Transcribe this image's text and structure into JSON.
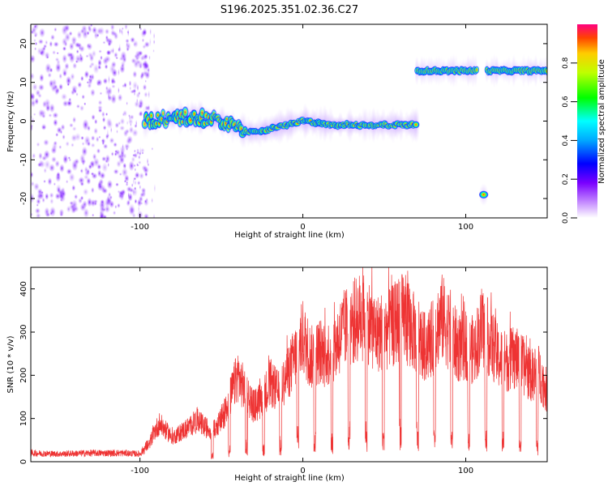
{
  "title": "S196.2025.351.02.36.C27",
  "colors": {
    "snr_line": "#ee3333",
    "axis": "#000000",
    "background": "#ffffff"
  },
  "chart_data": [
    {
      "type": "heatmap",
      "name": "spectrogram",
      "xlabel": "Height of straight line (km)",
      "ylabel": "Frequency (Hz)",
      "xlim": [
        -167,
        150
      ],
      "ylim": [
        -25,
        25
      ],
      "xticks": [
        -100,
        0,
        100
      ],
      "yticks": [
        -20,
        -10,
        0,
        10,
        20
      ],
      "colorbar": {
        "label": "Normalized spectral amplitude",
        "range": [
          0,
          1
        ],
        "ticks": [
          0.0,
          0.2,
          0.4,
          0.6,
          0.8
        ],
        "tick_labels": [
          "0.0",
          "0.2",
          "0.4",
          "0.6",
          "0.8"
        ],
        "colormap": "rainbow (white-violet-blue-cyan-green-yellow-red)"
      },
      "features": [
        {
          "description": "diffuse low-amplitude noise",
          "x_range": [
            -167,
            -95
          ],
          "freq_range": [
            -25,
            25
          ],
          "amplitude": 0.15
        },
        {
          "description": "main signal track",
          "x": [
            -97,
            -80,
            -65,
            -50,
            -40,
            -30,
            -20,
            -10,
            0,
            10,
            20,
            30,
            40,
            50,
            60,
            70
          ],
          "freq": [
            0,
            1,
            1,
            0,
            -2,
            -3,
            -2,
            -1,
            0,
            -0.5,
            -1,
            -1,
            -1,
            -1,
            -1,
            -1
          ],
          "amplitude": 0.85
        },
        {
          "description": "upper line segment",
          "x_range": [
            70,
            107
          ],
          "freq": 13,
          "amplitude": 0.9
        },
        {
          "description": "upper line segment",
          "x_range": [
            113,
            150
          ],
          "freq": 13,
          "amplitude": 0.9
        },
        {
          "description": "isolated blob",
          "x": 111,
          "freq": -19,
          "amplitude": 0.9
        }
      ]
    },
    {
      "type": "line",
      "name": "snr",
      "xlabel": "Height of straight line (km)",
      "ylabel": "SNR (10 * v/v)",
      "xlim": [
        -167,
        150
      ],
      "ylim": [
        0,
        450
      ],
      "xticks": [
        -100,
        0,
        100
      ],
      "yticks": [
        0,
        100,
        200,
        300,
        400
      ],
      "series": [
        {
          "name": "SNR",
          "color": "#ee3333",
          "x": [
            -167,
            -150,
            -130,
            -110,
            -100,
            -95,
            -92,
            -88,
            -85,
            -80,
            -75,
            -70,
            -65,
            -60,
            -55,
            -50,
            -45,
            -40,
            -35,
            -30,
            -25,
            -20,
            -15,
            -10,
            -5,
            0,
            5,
            10,
            15,
            20,
            25,
            30,
            35,
            40,
            45,
            50,
            55,
            60,
            65,
            70,
            75,
            80,
            85,
            90,
            95,
            100,
            105,
            110,
            115,
            120,
            125,
            130,
            135,
            140,
            145,
            150
          ],
          "y": [
            20,
            18,
            20,
            20,
            18,
            40,
            80,
            110,
            95,
            70,
            85,
            100,
            120,
            100,
            90,
            120,
            180,
            250,
            200,
            160,
            180,
            230,
            200,
            250,
            300,
            360,
            300,
            320,
            310,
            340,
            380,
            400,
            420,
            410,
            370,
            380,
            390,
            420,
            400,
            360,
            330,
            360,
            420,
            380,
            330,
            340,
            320,
            390,
            350,
            300,
            290,
            300,
            280,
            250,
            260,
            200
          ]
        }
      ]
    }
  ]
}
